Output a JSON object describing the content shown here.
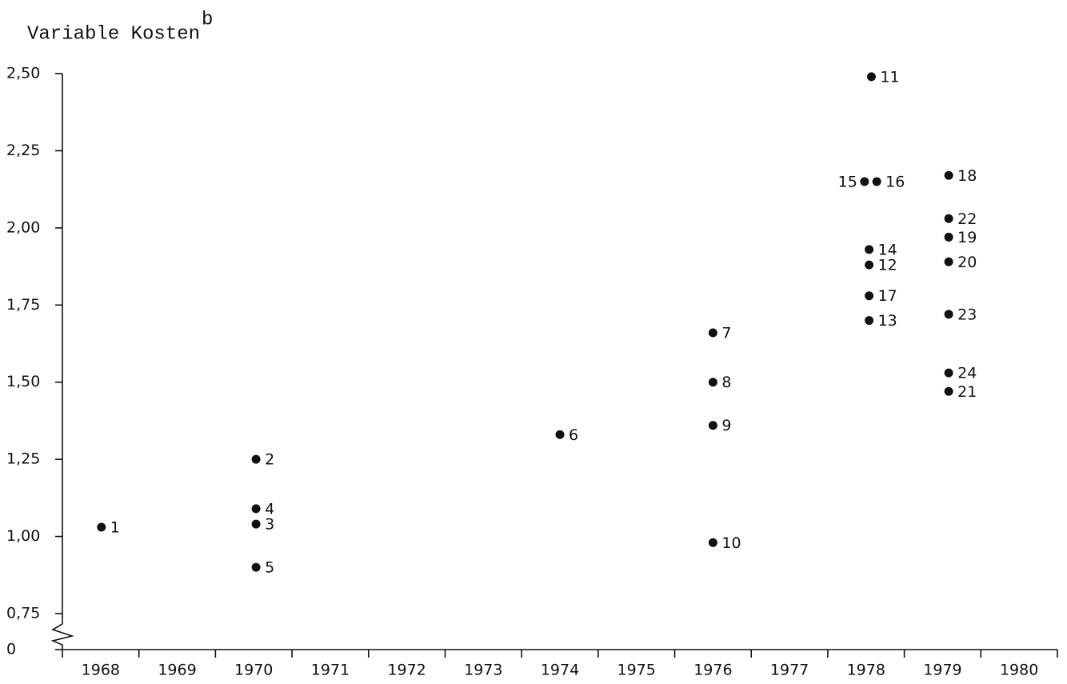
{
  "chart_data": {
    "type": "scatter",
    "title": "Variable Kosten",
    "title_superscript": "b",
    "categories": [
      "1968",
      "1969",
      "1970",
      "1971",
      "1972",
      "1973",
      "1974",
      "1975",
      "1976",
      "1977",
      "1978",
      "1979",
      "1980"
    ],
    "xlim": [
      1968,
      1981
    ],
    "xticks": [
      1968,
      1969,
      1970,
      1971,
      1972,
      1973,
      1974,
      1975,
      1976,
      1977,
      1978,
      1979,
      1980,
      1981
    ],
    "ylim": [
      0,
      2.5
    ],
    "axis_break": [
      0,
      0.75
    ],
    "yticks": [
      0,
      {
        "value": 0.75,
        "label": "0,75"
      },
      {
        "value": 1.0,
        "label": "1,00"
      },
      {
        "value": 1.25,
        "label": "1,25"
      },
      {
        "value": 1.5,
        "label": "1,50"
      },
      {
        "value": 1.75,
        "label": "1,75"
      },
      {
        "value": 2.0,
        "label": "2,00"
      },
      {
        "value": 2.25,
        "label": "2,25"
      },
      {
        "value": 2.5,
        "label": "2,50"
      }
    ],
    "color": "#111111",
    "x": [
      1968.51,
      1970.53,
      1970.53,
      1970.53,
      1970.53,
      1974.5,
      1976.5,
      1976.5,
      1976.5,
      1976.5,
      1978.57,
      1978.54,
      1978.54,
      1978.54,
      1978.48,
      1978.64,
      1978.54,
      1979.58,
      1979.58,
      1979.58,
      1979.58,
      1979.58,
      1979.58,
      1979.58
    ],
    "values": [
      1.03,
      1.25,
      1.04,
      1.09,
      0.9,
      1.33,
      1.66,
      1.5,
      1.36,
      0.98,
      2.49,
      1.88,
      1.7,
      1.93,
      2.15,
      2.15,
      1.78,
      2.17,
      1.97,
      1.89,
      1.47,
      2.03,
      1.72,
      1.53
    ],
    "point_labels": [
      "1",
      "2",
      "3",
      "4",
      "5",
      "6",
      "7",
      "8",
      "9",
      "10",
      "11",
      "12",
      "13",
      "14",
      "15",
      "16",
      "17",
      "18",
      "19",
      "20",
      "21",
      "22",
      "23",
      "24"
    ]
  }
}
